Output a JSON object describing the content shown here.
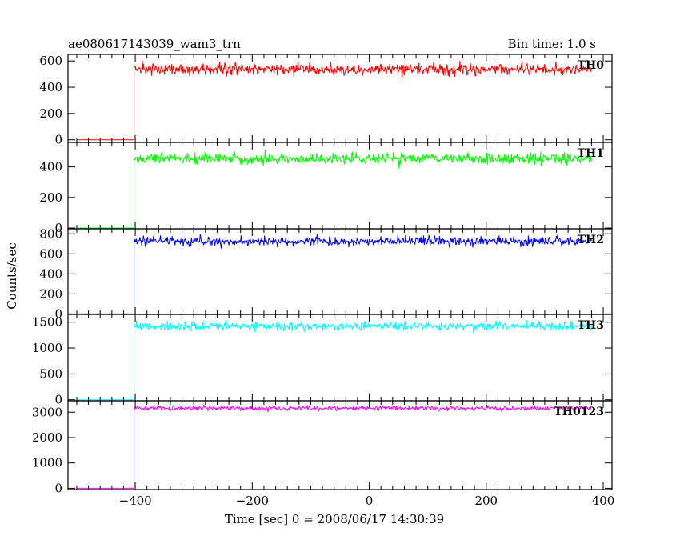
{
  "header": {
    "title": "ae080617143039_wam3_trn",
    "bin_time": "Bin time: 1.0 s"
  },
  "axes": {
    "xlabel": "Time [sec] 0 = 2008/06/17 14:30:39",
    "ylabel": "Counts/sec"
  },
  "chart_data": {
    "type": "line",
    "title": "ae080617143039_wam3_trn",
    "xlabel": "Time [sec] 0 = 2008/06/17 14:30:39",
    "ylabel": "Counts/sec",
    "xlim": [
      -515,
      415
    ],
    "x_ticks": [
      -400,
      -200,
      0,
      200,
      400
    ],
    "x_tick_labels": [
      "−400",
      "−200",
      "0",
      "200",
      "400"
    ],
    "bin_time_s": 1.0,
    "grid": false,
    "series": [
      {
        "name": "TH0",
        "color": "#ff0000",
        "ylim": [
          -20,
          650
        ],
        "y_ticks": [
          0,
          200,
          400,
          600
        ],
        "x_start": -500,
        "onset_x": -402,
        "baseline": 0,
        "plateau_mean": 535,
        "noise_sd": 22,
        "x_end": 380
      },
      {
        "name": "TH1",
        "color": "#00ff00",
        "ylim": [
          -5,
          560
        ],
        "y_ticks": [
          0,
          200,
          400
        ],
        "x_start": -500,
        "onset_x": -402,
        "baseline": 0,
        "plateau_mean": 455,
        "noise_sd": 18,
        "x_end": 380
      },
      {
        "name": "TH2",
        "color": "#0000ff",
        "ylim": [
          -5,
          850
        ],
        "y_ticks": [
          0,
          200,
          400,
          600,
          800
        ],
        "x_start": -500,
        "onset_x": -402,
        "baseline": 0,
        "plateau_mean": 725,
        "noise_sd": 22,
        "x_end": 380
      },
      {
        "name": "TH3",
        "color": "#00ffff",
        "ylim": [
          -20,
          1650
        ],
        "y_ticks": [
          0,
          500,
          1000,
          1500
        ],
        "x_start": -500,
        "onset_x": -402,
        "baseline": 0,
        "plateau_mean": 1420,
        "noise_sd": 40,
        "x_end": 380
      },
      {
        "name": "TH0123",
        "color": "#ff00ff",
        "ylim": [
          -50,
          3450
        ],
        "y_ticks": [
          0,
          1000,
          2000,
          3000
        ],
        "x_start": -500,
        "onset_x": -402,
        "baseline": 0,
        "plateau_mean": 3160,
        "noise_sd": 45,
        "x_end": 380
      }
    ]
  }
}
